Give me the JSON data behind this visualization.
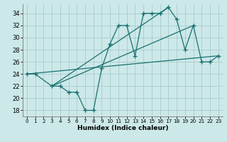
{
  "xlabel": "Humidex (Indice chaleur)",
  "background_color": "#cce8e8",
  "grid_color": "#aacccc",
  "line_color": "#1a7070",
  "xlim": [
    -0.5,
    23.5
  ],
  "ylim": [
    17,
    35.5
  ],
  "xticks": [
    0,
    1,
    2,
    3,
    4,
    5,
    6,
    7,
    8,
    9,
    10,
    11,
    12,
    13,
    14,
    15,
    16,
    17,
    18,
    19,
    20,
    21,
    22,
    23
  ],
  "yticks": [
    18,
    20,
    22,
    24,
    26,
    28,
    30,
    32,
    34
  ],
  "series1_x": [
    0,
    1,
    3,
    4,
    5,
    6,
    7,
    8,
    9,
    10,
    11,
    12,
    13,
    14,
    15,
    16,
    17,
    18,
    19,
    20,
    21,
    22,
    23
  ],
  "series1_y": [
    24,
    24,
    22,
    22,
    21,
    21,
    18,
    18,
    25,
    29,
    32,
    32,
    27,
    34,
    34,
    34,
    35,
    33,
    28,
    32,
    26,
    26,
    27
  ],
  "series2_x": [
    0,
    23
  ],
  "series2_y": [
    24,
    27
  ],
  "series3_x": [
    3,
    17
  ],
  "series3_y": [
    22,
    35
  ],
  "series4_x": [
    3,
    20
  ],
  "series4_y": [
    22,
    32
  ]
}
